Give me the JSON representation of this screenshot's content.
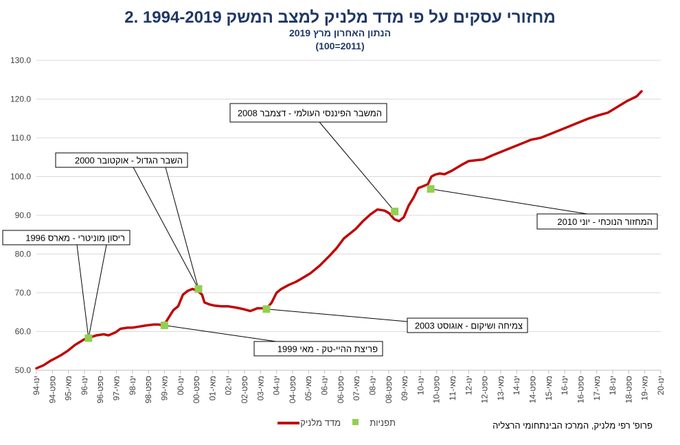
{
  "chart_data": {
    "type": "line",
    "title": "2. מחזורי עסקים על פי מדד מלניק למצב המשק 1994-2019",
    "subtitle": "הנתון האחרון מרץ 2019",
    "subtitle2": "(100=2011)",
    "ylim": [
      50,
      130
    ],
    "yticks": [
      "50.0",
      "60.0",
      "70.0",
      "80.0",
      "90.0",
      "100.0",
      "110.0",
      "120.0",
      "130.0"
    ],
    "xticks": [
      "ינו-94",
      "ספט-94",
      "מאי-95",
      "ינו-96",
      "ספט-96",
      "מאי-97",
      "ינו-98",
      "ספט-98",
      "מאי-99",
      "ינו-00",
      "ספט-00",
      "מאי-01",
      "ינו-02",
      "ספט-02",
      "מאי-03",
      "ינו-04",
      "ספט-04",
      "מאי-05",
      "ינו-06",
      "ספט-06",
      "מאי-07",
      "ינו-08",
      "ספט-08",
      "מאי-09",
      "ינו-10",
      "ספט-10",
      "מאי-11",
      "ינו-12",
      "ספט-12",
      "מאי-13",
      "ינו-14",
      "ספט-14",
      "מאי-15",
      "ינו-16",
      "ספט-16",
      "מאי-17",
      "ינו-18",
      "ספט-18",
      "מאי-19",
      "ינו-20"
    ],
    "series": [
      {
        "name": "מדד מלניק",
        "color": "#c00000",
        "x": [
          1994.0,
          1994.3,
          1994.6,
          1995.0,
          1995.3,
          1995.6,
          1996.0,
          1996.2,
          1996.5,
          1996.8,
          1997.0,
          1997.3,
          1997.5,
          1997.8,
          1998.0,
          1998.3,
          1998.6,
          1998.9,
          1999.1,
          1999.3,
          1999.5,
          1999.7,
          1999.9,
          2000.1,
          2000.3,
          2000.5,
          2000.7,
          2000.9,
          2001.0,
          2001.2,
          2001.4,
          2001.7,
          2002.0,
          2002.3,
          2002.6,
          2002.9,
          2003.0,
          2003.2,
          2003.6,
          2003.8,
          2004.0,
          2004.2,
          2004.5,
          2004.8,
          2005.0,
          2005.4,
          2005.8,
          2006.2,
          2006.5,
          2006.8,
          2007.0,
          2007.3,
          2007.6,
          2007.9,
          2008.2,
          2008.5,
          2008.7,
          2008.9,
          2009.1,
          2009.3,
          2009.5,
          2009.7,
          2009.9,
          2010.1,
          2010.3,
          2010.45,
          2010.6,
          2010.8,
          2011.0,
          2011.3,
          2011.7,
          2012.0,
          2012.3,
          2012.6,
          2013.0,
          2013.4,
          2013.8,
          2014.2,
          2014.6,
          2015.0,
          2015.4,
          2015.8,
          2016.2,
          2016.6,
          2017.0,
          2017.4,
          2017.8,
          2018.2,
          2018.6,
          2019.0,
          2019.2
        ],
        "values": [
          50.5,
          51.3,
          52.5,
          53.8,
          55.0,
          56.5,
          58.0,
          58.4,
          59.0,
          59.3,
          59.0,
          59.8,
          60.7,
          61.0,
          61.0,
          61.3,
          61.6,
          61.8,
          61.8,
          61.5,
          63.5,
          65.5,
          66.5,
          69.5,
          70.5,
          71.0,
          70.6,
          69.5,
          67.5,
          67.0,
          66.7,
          66.5,
          66.5,
          66.2,
          65.8,
          65.3,
          65.5,
          66.0,
          66.0,
          67.5,
          70.0,
          71.0,
          72.0,
          72.8,
          73.5,
          75.0,
          77.0,
          79.5,
          81.5,
          84.0,
          85.0,
          86.5,
          88.5,
          90.2,
          91.5,
          91.2,
          90.5,
          89.0,
          88.5,
          89.5,
          92.5,
          94.5,
          97.0,
          97.5,
          98.0,
          100.0,
          100.5,
          100.8,
          100.6,
          101.5,
          103.0,
          104.0,
          104.2,
          104.4,
          105.5,
          106.5,
          107.5,
          108.5,
          109.5,
          110.0,
          111.0,
          112.0,
          113.0,
          114.0,
          115.0,
          115.8,
          116.5,
          118.0,
          119.5,
          120.7,
          122.0
        ]
      },
      {
        "name": "תפניות",
        "color": "#92d050",
        "x": [
          1996.17,
          2000.75,
          1999.33,
          2003.58,
          2008.92,
          2010.42
        ],
        "values": [
          58.3,
          71.0,
          61.6,
          65.8,
          91.0,
          96.8
        ]
      }
    ],
    "annotations": [
      {
        "text": "ריסון מוניטרי - מארס 1996",
        "point": 0
      },
      {
        "text": "השבר הגדול - אוקטובר 2000",
        "point": 1
      },
      {
        "text": "פריצת ההיי-טק - מאי 1999",
        "point": 2
      },
      {
        "text": "צמיחה ושיקום - אוגוסט 2003",
        "point": 3
      },
      {
        "text": "המשבר הפיננסי העולמי - דצמבר 2008",
        "point": 4
      },
      {
        "text": "המחזור הנוכחי - יוני 2010",
        "point": 5
      }
    ],
    "legend": [
      "מדד מלניק",
      "תפניות"
    ],
    "credit": "פרופ' רפי מלניק, המרכז הבינתחומי הרצליה",
    "grid": true,
    "legend_position": "bottom"
  }
}
